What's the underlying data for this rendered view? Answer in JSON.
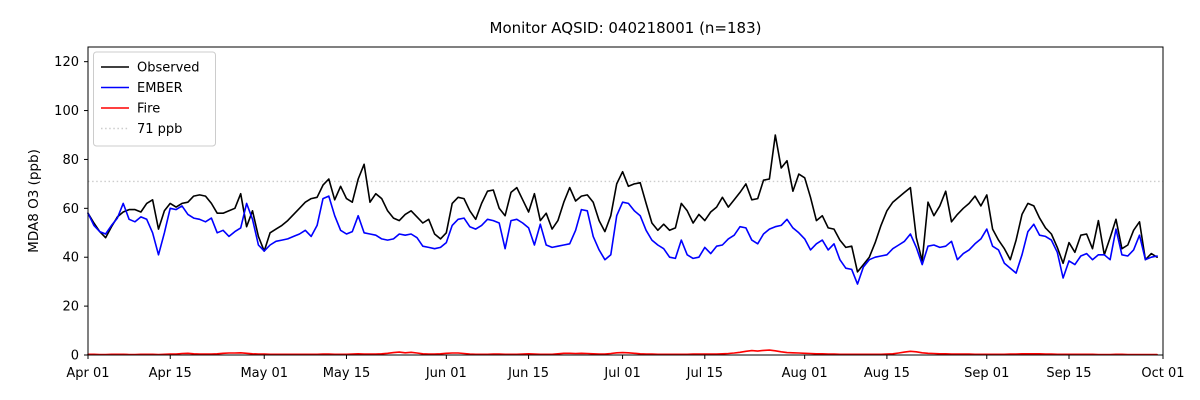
{
  "chart_data": {
    "type": "line",
    "title": "Monitor AQSID: 040218001 (n=183)",
    "ylabel": "MDA8 O3 (ppb)",
    "xlabel": "",
    "n_points": 183,
    "grid": false,
    "legend_position": "upper left",
    "ylim": [
      0,
      126
    ],
    "yticks": [
      0,
      20,
      40,
      60,
      80,
      100,
      120
    ],
    "x_ticks": [
      {
        "label": "Apr 01",
        "day": 0
      },
      {
        "label": "Apr 15",
        "day": 14
      },
      {
        "label": "May 01",
        "day": 30
      },
      {
        "label": "May 15",
        "day": 44
      },
      {
        "label": "Jun 01",
        "day": 61
      },
      {
        "label": "Jun 15",
        "day": 75
      },
      {
        "label": "Jul 01",
        "day": 91
      },
      {
        "label": "Jul 15",
        "day": 105
      },
      {
        "label": "Aug 01",
        "day": 122
      },
      {
        "label": "Aug 15",
        "day": 136
      },
      {
        "label": "Sep 01",
        "day": 153
      },
      {
        "label": "Sep 15",
        "day": 167
      },
      {
        "label": "Oct 01",
        "day": 183
      }
    ],
    "reference_line": {
      "label": "71 ppb",
      "value": 71,
      "color": "#cccccc",
      "style": "dotted"
    },
    "series": [
      {
        "name": "Observed",
        "color": "#000000",
        "values": [
          58,
          54,
          50.5,
          48,
          52.5,
          56.5,
          58.5,
          59.5,
          59.5,
          58.5,
          62,
          63.5,
          51.5,
          59,
          62,
          60.5,
          62,
          62.5,
          65,
          65.5,
          65,
          62,
          58,
          58,
          59,
          60,
          66,
          52.5,
          59,
          48.5,
          42.5,
          50,
          51.5,
          53,
          55,
          57.5,
          60,
          62.5,
          64,
          64.5,
          69.5,
          72,
          63.5,
          69,
          64,
          62.5,
          72,
          78,
          62.5,
          66,
          64,
          59,
          56,
          55,
          57.5,
          59,
          56.5,
          54,
          55.5,
          49.5,
          47.5,
          50,
          62,
          64.5,
          64,
          59,
          55.5,
          62,
          67,
          67.5,
          60,
          57,
          66.5,
          68.5,
          63.5,
          58.5,
          66,
          55,
          58,
          51.5,
          55,
          62.5,
          68.5,
          63,
          65,
          65.5,
          62.5,
          55,
          50.5,
          57,
          70,
          75,
          69,
          70,
          70.5,
          62,
          54,
          51,
          53.5,
          51,
          52,
          62,
          59,
          54,
          57.5,
          55,
          58.5,
          60.5,
          64.5,
          60.5,
          63.5,
          66.5,
          70,
          63.5,
          64,
          71.5,
          72,
          90,
          76.5,
          79.5,
          67,
          74,
          72.5,
          64.5,
          55,
          57,
          52,
          51.5,
          47,
          44,
          44.5,
          34,
          37,
          40,
          46,
          53,
          59,
          62.5,
          64.5,
          66.5,
          68.5,
          48,
          38.5,
          62.5,
          57,
          61,
          67,
          54.5,
          57.5,
          60,
          62,
          65,
          61,
          65.5,
          51.5,
          47,
          43.5,
          39,
          47,
          57.5,
          62,
          61,
          56,
          52,
          49.5,
          44,
          37.5,
          46,
          42,
          49,
          49.5,
          43.5,
          55,
          41,
          48,
          55.5,
          43.5,
          45,
          51,
          54.5,
          39,
          41.5,
          40
        ]
      },
      {
        "name": "EMBER",
        "color": "#0000ff",
        "values": [
          58,
          53,
          50.5,
          49.5,
          53,
          56,
          62,
          55.5,
          54.5,
          56.5,
          55.5,
          50,
          41,
          50,
          60,
          59.5,
          61,
          57.5,
          56,
          55.5,
          54.5,
          56,
          50,
          51,
          48.5,
          50.5,
          52,
          62,
          55.5,
          45,
          42.5,
          45,
          46.5,
          47,
          47.5,
          48.5,
          49.5,
          51,
          48.5,
          53,
          64,
          65,
          57,
          51,
          49.5,
          50.5,
          57,
          50,
          49.5,
          49,
          47.5,
          47,
          47.5,
          49.5,
          49,
          49.5,
          48,
          44.5,
          44,
          43.5,
          44,
          46,
          53,
          55.5,
          56,
          52.5,
          51.5,
          53,
          55.5,
          55,
          54,
          43.5,
          55,
          55.5,
          54,
          52,
          45,
          53.5,
          45,
          44,
          44.5,
          45,
          45.5,
          51,
          59.5,
          59,
          48.5,
          43,
          39,
          41,
          57,
          62.5,
          62,
          59,
          57,
          51,
          47,
          45,
          43.5,
          40,
          39.5,
          47,
          41,
          39.5,
          40,
          44,
          41.5,
          44.5,
          45,
          47.5,
          49,
          52.5,
          52,
          47,
          45.5,
          49.5,
          51.5,
          52.5,
          53,
          55.5,
          52,
          50,
          47.5,
          43,
          45.5,
          47,
          43,
          45.5,
          39,
          35.5,
          35,
          29,
          36,
          39,
          40,
          40.5,
          41,
          43.5,
          45,
          46.5,
          49.5,
          44,
          37,
          44.5,
          45,
          44,
          44.5,
          46.5,
          39,
          41.5,
          43,
          45.5,
          47.5,
          51.5,
          44.5,
          43,
          37.5,
          35.5,
          33.5,
          41,
          50.5,
          53.5,
          49,
          48.5,
          47,
          42,
          31.5,
          38.5,
          37,
          40.5,
          41.5,
          39,
          41,
          41,
          39,
          51.5,
          41,
          40.5,
          43,
          49,
          39,
          40,
          40.5
        ]
      },
      {
        "name": "Fire",
        "color": "#ff0000",
        "values": [
          0.3,
          0.3,
          0.2,
          0.2,
          0.3,
          0.3,
          0.3,
          0.2,
          0.2,
          0.3,
          0.3,
          0.3,
          0.2,
          0.3,
          0.4,
          0.4,
          0.6,
          0.7,
          0.5,
          0.4,
          0.4,
          0.4,
          0.5,
          0.7,
          0.8,
          0.8,
          0.9,
          0.7,
          0.5,
          0.4,
          0.4,
          0.3,
          0.3,
          0.3,
          0.3,
          0.3,
          0.3,
          0.3,
          0.3,
          0.3,
          0.4,
          0.4,
          0.3,
          0.3,
          0.3,
          0.4,
          0.5,
          0.4,
          0.4,
          0.4,
          0.5,
          0.7,
          1.0,
          1.2,
          0.9,
          1.1,
          0.8,
          0.5,
          0.4,
          0.4,
          0.5,
          0.7,
          0.8,
          0.8,
          0.6,
          0.4,
          0.3,
          0.3,
          0.3,
          0.4,
          0.4,
          0.3,
          0.3,
          0.3,
          0.4,
          0.5,
          0.4,
          0.3,
          0.3,
          0.3,
          0.5,
          0.7,
          0.7,
          0.6,
          0.7,
          0.6,
          0.5,
          0.4,
          0.4,
          0.6,
          0.9,
          1.0,
          0.9,
          0.7,
          0.5,
          0.4,
          0.4,
          0.3,
          0.3,
          0.3,
          0.3,
          0.3,
          0.3,
          0.4,
          0.4,
          0.4,
          0.4,
          0.4,
          0.5,
          0.6,
          0.8,
          1.1,
          1.5,
          1.8,
          1.6,
          1.9,
          2.0,
          1.7,
          1.3,
          1.0,
          0.9,
          0.8,
          0.7,
          0.6,
          0.5,
          0.5,
          0.4,
          0.4,
          0.3,
          0.3,
          0.3,
          0.3,
          0.3,
          0.3,
          0.3,
          0.3,
          0.4,
          0.5,
          0.8,
          1.2,
          1.5,
          1.3,
          0.9,
          0.7,
          0.6,
          0.5,
          0.5,
          0.4,
          0.4,
          0.4,
          0.4,
          0.3,
          0.3,
          0.3,
          0.3,
          0.3,
          0.3,
          0.4,
          0.4,
          0.5,
          0.5,
          0.5,
          0.5,
          0.4,
          0.4,
          0.3,
          0.3,
          0.3,
          0.3,
          0.3,
          0.3,
          0.3,
          0.2,
          0.2,
          0.2,
          0.3,
          0.3,
          0.2,
          0.2,
          0.2,
          0.2,
          0.2,
          0.2
        ]
      }
    ],
    "legend_entries": [
      "Observed",
      "EMBER",
      "Fire",
      "71 ppb"
    ]
  }
}
